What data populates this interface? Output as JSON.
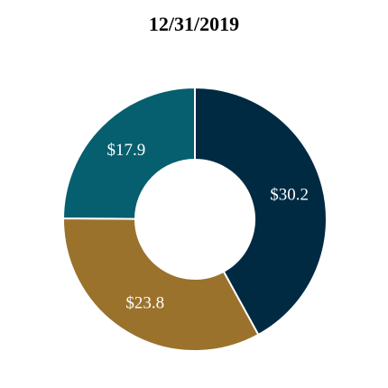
{
  "chart_data": {
    "type": "pie",
    "title": "12/31/2019",
    "categories": [
      "",
      "",
      ""
    ],
    "values": [
      30.2,
      23.8,
      17.9
    ],
    "labels": [
      "$30.2",
      "$23.8",
      "$17.9"
    ],
    "colors": [
      "#002a42",
      "#9a722c",
      "#065f6e"
    ],
    "donut": true,
    "start_angle_deg": 0,
    "direction": "clockwise"
  }
}
